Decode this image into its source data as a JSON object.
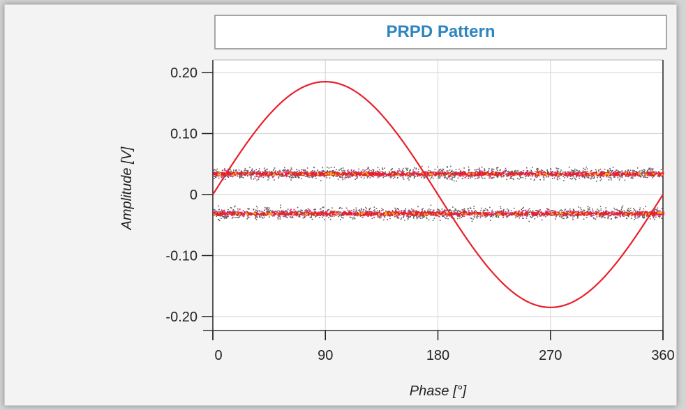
{
  "chart_data": {
    "type": "scatter",
    "title": "PRPD Pattern",
    "xlabel": "Phase [°]",
    "ylabel": "Amplitude [V]",
    "xlim": [
      0,
      360
    ],
    "ylim": [
      -0.2,
      0.2
    ],
    "x_ticks": [
      0,
      90,
      180,
      270,
      360
    ],
    "x_tick_labels": [
      "0",
      "90",
      "180",
      "270",
      "360"
    ],
    "y_ticks": [
      0.2,
      0.1,
      0,
      -0.1,
      -0.2
    ],
    "y_tick_labels": [
      "0.20",
      "0.10",
      "0",
      "-0.10",
      "-0.20"
    ],
    "grid": true,
    "reference_sine": {
      "amplitude": 0.185,
      "period": 360,
      "color": "#e8202a"
    },
    "bands": [
      {
        "center": 0.035,
        "spread": 0.006,
        "outer_spread": 0.014
      },
      {
        "center": -0.03,
        "spread": 0.006,
        "outer_spread": 0.014
      }
    ],
    "colors": {
      "dense": "#e8202a",
      "hot": "#f5b800",
      "mid": "#e83f8c",
      "sparse": "#5c5c5c"
    }
  }
}
